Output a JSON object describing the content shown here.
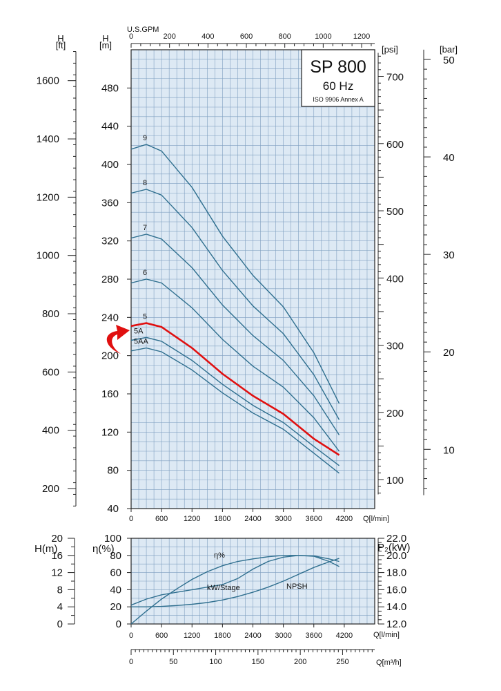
{
  "colors": {
    "plot_bg": "#dde9f4",
    "grid": "#7f9fc0",
    "curve": "#2f6f8f",
    "highlight": "#e01010"
  },
  "chart_data": [
    {
      "type": "line",
      "title": "SP 800",
      "subtitle": "60 Hz",
      "note": "ISO 9906 Annex A",
      "x_label": "Q[l/min]",
      "x_ticks": [
        0,
        600,
        1200,
        1800,
        2400,
        3000,
        3600,
        4200
      ],
      "xlim": [
        0,
        4800
      ],
      "top_axis": {
        "label": "U.S.GPM",
        "ticks": [
          0,
          200,
          400,
          600,
          800,
          1000,
          1200
        ]
      },
      "y_label": "H\n[m]",
      "y_ticks": [
        40,
        80,
        120,
        160,
        200,
        240,
        280,
        320,
        360,
        400,
        440,
        480
      ],
      "ylim": [
        40,
        520
      ],
      "left_axis_ft": {
        "label": "H\n[ft]",
        "ticks": [
          200,
          400,
          600,
          800,
          1000,
          1200,
          1400,
          1600
        ]
      },
      "right_axis_psi": {
        "label": "[psi]",
        "ticks": [
          100,
          200,
          300,
          400,
          500,
          600,
          700
        ]
      },
      "right_axis_bar": {
        "label": "[bar]",
        "ticks": [
          10,
          20,
          30,
          40,
          50
        ]
      },
      "series": [
        {
          "name": "9",
          "highlight": false,
          "x": [
            0,
            300,
            600,
            1200,
            1800,
            2400,
            3000,
            3600,
            4100
          ],
          "y": [
            416,
            421,
            414,
            376,
            325,
            284,
            251,
            203,
            150
          ]
        },
        {
          "name": "8",
          "highlight": false,
          "x": [
            0,
            300,
            600,
            1200,
            1800,
            2400,
            3000,
            3600,
            4100
          ],
          "y": [
            370,
            374,
            368,
            334,
            289,
            252,
            223,
            180,
            133
          ]
        },
        {
          "name": "7",
          "highlight": false,
          "x": [
            0,
            300,
            600,
            1200,
            1800,
            2400,
            3000,
            3600,
            4100
          ],
          "y": [
            323,
            327,
            322,
            292,
            253,
            221,
            195,
            158,
            117
          ]
        },
        {
          "name": "6",
          "highlight": false,
          "x": [
            0,
            300,
            600,
            1200,
            1800,
            2400,
            3000,
            3600,
            4100
          ],
          "y": [
            276,
            280,
            276,
            250,
            217,
            189,
            167,
            135,
            100
          ]
        },
        {
          "name": "5",
          "highlight": true,
          "x": [
            0,
            300,
            600,
            1200,
            1800,
            2400,
            3000,
            3600,
            4100
          ],
          "y": [
            231,
            234,
            230,
            208,
            181,
            158,
            139,
            113,
            96
          ]
        },
        {
          "name": "5A",
          "highlight": false,
          "x": [
            0,
            300,
            600,
            1200,
            1800,
            2400,
            3000,
            3600,
            4100
          ],
          "y": [
            216,
            219,
            215,
            195,
            170,
            148,
            130,
            105,
            85
          ]
        },
        {
          "name": "5AA",
          "highlight": false,
          "x": [
            0,
            300,
            600,
            1200,
            1800,
            2400,
            3000,
            3600,
            4100
          ],
          "y": [
            205,
            208,
            204,
            185,
            161,
            140,
            123,
            98,
            77
          ]
        }
      ]
    },
    {
      "type": "line",
      "x_label": "Q[l/min]",
      "x_ticks": [
        0,
        600,
        1200,
        1800,
        2400,
        3000,
        3600,
        4200
      ],
      "xlim": [
        0,
        4800
      ],
      "eta_axis": {
        "label": "η(%)",
        "ticks": [
          0,
          20,
          40,
          60,
          80,
          100
        ],
        "range": [
          0,
          100
        ]
      },
      "npsh_axis": {
        "label": "H(m)",
        "ticks": [
          0,
          4,
          8,
          12,
          16,
          20
        ],
        "range": [
          0,
          20
        ]
      },
      "power_axis": {
        "label": "P₂(kW)",
        "ticks": [
          "12.0",
          "14.0",
          "16.0",
          "18.0",
          "20.0",
          "22.0"
        ],
        "range": [
          12,
          22
        ]
      },
      "series": [
        {
          "name": "η%",
          "axis": "eta",
          "x": [
            0,
            300,
            600,
            900,
            1200,
            1500,
            1800,
            2100,
            2400,
            2700,
            3000,
            3300,
            3600,
            3900,
            4100
          ],
          "y": [
            0,
            15,
            29,
            41,
            52,
            61,
            68,
            73,
            76,
            78.5,
            80,
            80,
            79,
            73,
            67
          ]
        },
        {
          "name": "kW/Stage",
          "axis": "power",
          "x": [
            0,
            300,
            600,
            900,
            1200,
            1500,
            1800,
            2100,
            2400,
            2700,
            3000,
            3300,
            3600,
            3900,
            4100
          ],
          "y": [
            14.2,
            14.9,
            15.4,
            15.7,
            16.0,
            16.3,
            16.6,
            17.3,
            18.4,
            19.3,
            19.8,
            20.0,
            19.95,
            19.6,
            19.3
          ]
        },
        {
          "name": "NPSH",
          "axis": "npsh",
          "x": [
            0,
            300,
            600,
            900,
            1200,
            1500,
            1800,
            2100,
            2400,
            2700,
            3000,
            3300,
            3600,
            3900,
            4100
          ],
          "y": [
            4.0,
            4.0,
            4.1,
            4.3,
            4.6,
            5.0,
            5.6,
            6.4,
            7.4,
            8.6,
            10.0,
            11.6,
            13.2,
            14.5,
            15.3
          ]
        }
      ]
    },
    {
      "type": "axis",
      "x_label": "Q[m³/h]",
      "x_ticks": [
        0,
        50,
        100,
        150,
        200,
        250
      ]
    }
  ]
}
